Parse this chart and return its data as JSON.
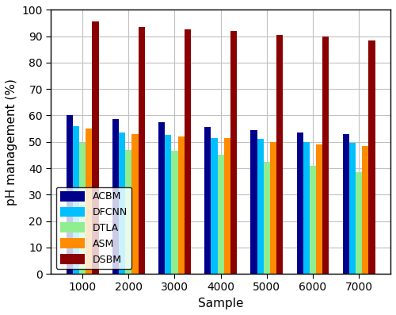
{
  "categories": [
    1000,
    2000,
    3000,
    4000,
    5000,
    6000,
    7000
  ],
  "series": {
    "ACBM": [
      60.0,
      58.5,
      57.5,
      55.5,
      54.5,
      53.5,
      53.0
    ],
    "DFCNN": [
      56.0,
      53.5,
      52.5,
      51.5,
      51.0,
      50.0,
      49.5
    ],
    "DTLA": [
      49.5,
      47.0,
      46.5,
      45.0,
      42.5,
      41.0,
      38.5
    ],
    "ASM": [
      55.0,
      53.0,
      52.0,
      51.5,
      50.0,
      49.0,
      48.5
    ],
    "DSBM": [
      95.5,
      93.5,
      92.5,
      92.0,
      90.5,
      90.0,
      88.5
    ]
  },
  "colors": {
    "ACBM": "#00008B",
    "DFCNN": "#00BFFF",
    "DTLA": "#90EE90",
    "ASM": "#FF8C00",
    "DSBM": "#8B0000"
  },
  "ylabel": "pH management (%)",
  "xlabel": "Sample",
  "ylim": [
    0,
    100
  ],
  "yticks": [
    0,
    10,
    20,
    30,
    40,
    50,
    60,
    70,
    80,
    90,
    100
  ],
  "legend_loc": "lower left",
  "bar_width": 0.14,
  "fig_width": 5.0,
  "fig_height": 3.97,
  "dpi": 100,
  "bg_color": "#ffffff",
  "grid_color": "#c0c0c0",
  "tick_fontsize": 10,
  "label_fontsize": 11,
  "legend_fontsize": 9
}
